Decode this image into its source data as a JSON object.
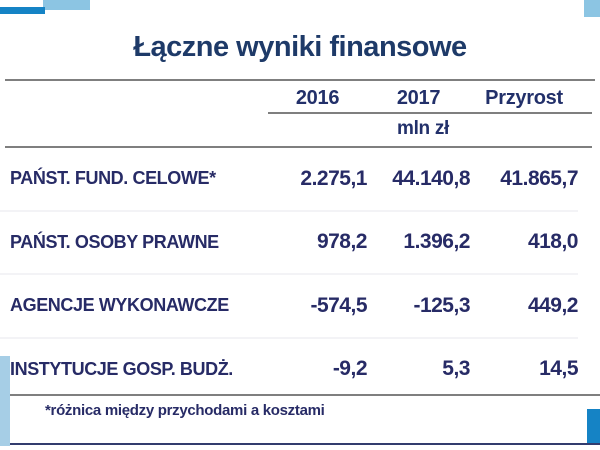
{
  "title": "Łączne wyniki finansowe",
  "table": {
    "columns": [
      "2016",
      "2017",
      "Przyrost"
    ],
    "unit": "mln zł",
    "rows": [
      {
        "label": "PAŃST. FUND. CELOWE*",
        "values": [
          "2.275,1",
          "44.140,8",
          "41.865,7"
        ]
      },
      {
        "label": "PAŃST. OSOBY PRAWNE",
        "values": [
          "978,2",
          "1.396,2",
          "418,0"
        ]
      },
      {
        "label": "AGENCJE WYKONAWCZE",
        "values": [
          "-574,5",
          "-125,3",
          "449,2"
        ]
      },
      {
        "label": "INSTYTUCJE GOSP. BUDŻ.",
        "values": [
          "-9,2",
          "5,3",
          "14,5"
        ]
      }
    ]
  },
  "footnote": "*różnica między przychodami a kosztami",
  "colors": {
    "title_navy": "#1e3a68",
    "text_navy": "#272b66",
    "accent_blue": "#1583c5",
    "light_blue": "#8cc5e3",
    "left_strip_blue": "#a6cee6",
    "line_gray": "#7f7f7f",
    "bottom_line_navy": "#323c6e"
  }
}
